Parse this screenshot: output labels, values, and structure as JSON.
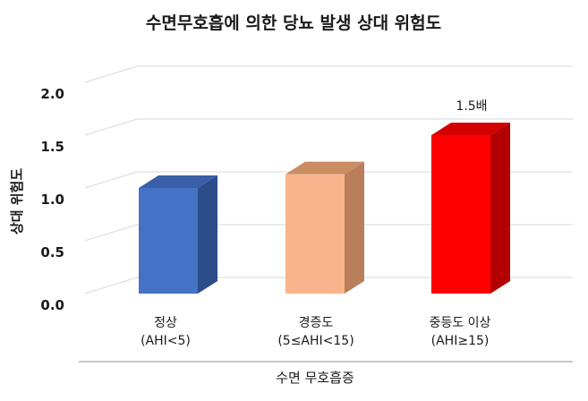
{
  "chart_data": {
    "type": "bar",
    "title": "수면무호흡에 의한 당뇨 발생 상대 위험도",
    "ylabel": "상대 위험도",
    "xlabel": "수면 무호흡증",
    "categories": [
      {
        "line1": "정상",
        "line2": "(AHI<5)"
      },
      {
        "line1": "경증도",
        "line2": "(5≤AHI<15)"
      },
      {
        "line1": "중등도 이상",
        "line2": "(AHI≥15)"
      }
    ],
    "values": [
      1.0,
      1.13,
      1.5
    ],
    "colors": [
      {
        "front": "#4472c4",
        "side": "#2c4c8a",
        "top": "#3a5fa6"
      },
      {
        "front": "#f8b58b",
        "side": "#b87f5a",
        "top": "#c98c63"
      },
      {
        "front": "#ff0000",
        "side": "#b30000",
        "top": "#d40000"
      }
    ],
    "ylim": [
      0,
      2.0
    ],
    "yticks": [
      "0.0",
      "0.5",
      "1.0",
      "1.5",
      "2.0"
    ],
    "annotations": [
      {
        "bar": 2,
        "text": "1.5배"
      }
    ],
    "grid": true,
    "legend": "none"
  }
}
